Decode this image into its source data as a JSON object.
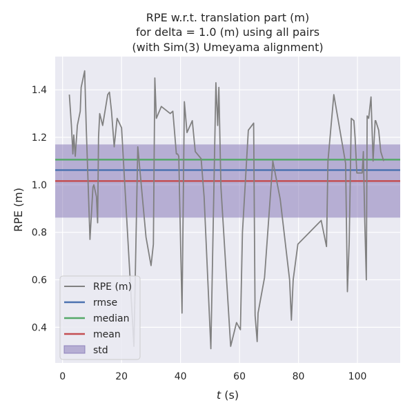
{
  "chart_data": {
    "type": "line",
    "title": [
      "RPE w.r.t. translation part (m)",
      "for delta = 1.0 (m) using all pairs",
      "(with Sim(3) Umeyama alignment)"
    ],
    "xlabel_italic": "t",
    "xlabel_rest": " (s)",
    "ylabel": "RPE (m)",
    "xlim": [
      -2.5,
      114.5
    ],
    "ylim": [
      0.25,
      1.54
    ],
    "xticks": [
      0,
      20,
      40,
      60,
      80,
      100
    ],
    "yticks": [
      0.4,
      0.6,
      0.8,
      1.0,
      1.2,
      1.4
    ],
    "ytick_labels": [
      "0.4",
      "0.6",
      "0.8",
      "1.0",
      "1.2",
      "1.4"
    ],
    "grid": true,
    "legend_position": "lower-left",
    "series": [
      {
        "name": "RPE (m)",
        "color": "#808080",
        "x": [
          2.3,
          3.0,
          3.5,
          3.8,
          4.3,
          5.0,
          6.0,
          6.3,
          7.5,
          8.0,
          9.3,
          10.3,
          10.6,
          11.5,
          11.9,
          12.2,
          12.6,
          13.6,
          15.3,
          15.9,
          16.6,
          17.5,
          18.5,
          20.0,
          24.2,
          25.5,
          28.3,
          30.0,
          30.8,
          31.3,
          31.8,
          33.5,
          36.5,
          37.4,
          38.6,
          39.0,
          39.4,
          40.5,
          41.3,
          42.2,
          44.0,
          45.0,
          47.0,
          48.0,
          50.3,
          52.0,
          52.6,
          53.0,
          53.7,
          57.0,
          59.0,
          60.3,
          61.0,
          63.0,
          64.8,
          65.3,
          66.0,
          66.3,
          68.5,
          71.3,
          73.8,
          77.0,
          77.6,
          78.2,
          79.8,
          87.7,
          89.5,
          90.0,
          92.0,
          96.0,
          96.6,
          97.2,
          97.9,
          98.8,
          99.2,
          99.8,
          101.6,
          102.0,
          102.5,
          103.0,
          103.3,
          103.8,
          104.6,
          105.3,
          106.0,
          106.2,
          107.2,
          107.9,
          108.9
        ],
        "values": [
          1.38,
          1.25,
          1.13,
          1.21,
          1.12,
          1.25,
          1.31,
          1.41,
          1.48,
          1.25,
          0.77,
          0.99,
          1.0,
          0.95,
          0.84,
          1.2,
          1.3,
          1.25,
          1.38,
          1.39,
          1.31,
          1.16,
          1.28,
          1.24,
          0.32,
          1.16,
          0.78,
          0.66,
          0.75,
          1.45,
          1.28,
          1.33,
          1.3,
          1.31,
          1.13,
          1.13,
          1.12,
          0.46,
          1.35,
          1.22,
          1.27,
          1.14,
          1.11,
          0.95,
          0.31,
          1.43,
          1.25,
          1.41,
          0.99,
          0.32,
          0.42,
          0.39,
          0.8,
          1.23,
          1.26,
          0.45,
          0.34,
          0.46,
          0.61,
          1.1,
          0.94,
          0.6,
          0.43,
          0.6,
          0.75,
          0.85,
          0.74,
          1.1,
          1.38,
          1.09,
          0.55,
          0.76,
          1.28,
          1.27,
          1.2,
          1.05,
          1.05,
          1.14,
          0.84,
          0.6,
          1.29,
          1.28,
          1.37,
          1.1,
          1.27,
          1.27,
          1.23,
          1.14,
          1.1
        ]
      },
      {
        "name": "rmse",
        "color": "#4c72b0",
        "value": 1.062
      },
      {
        "name": "median",
        "color": "#55a868",
        "value": 1.106
      },
      {
        "name": "mean",
        "color": "#c44e52",
        "value": 1.016
      },
      {
        "name": "std",
        "color": "#8172b3",
        "band": [
          0.862,
          1.17
        ]
      }
    ]
  }
}
